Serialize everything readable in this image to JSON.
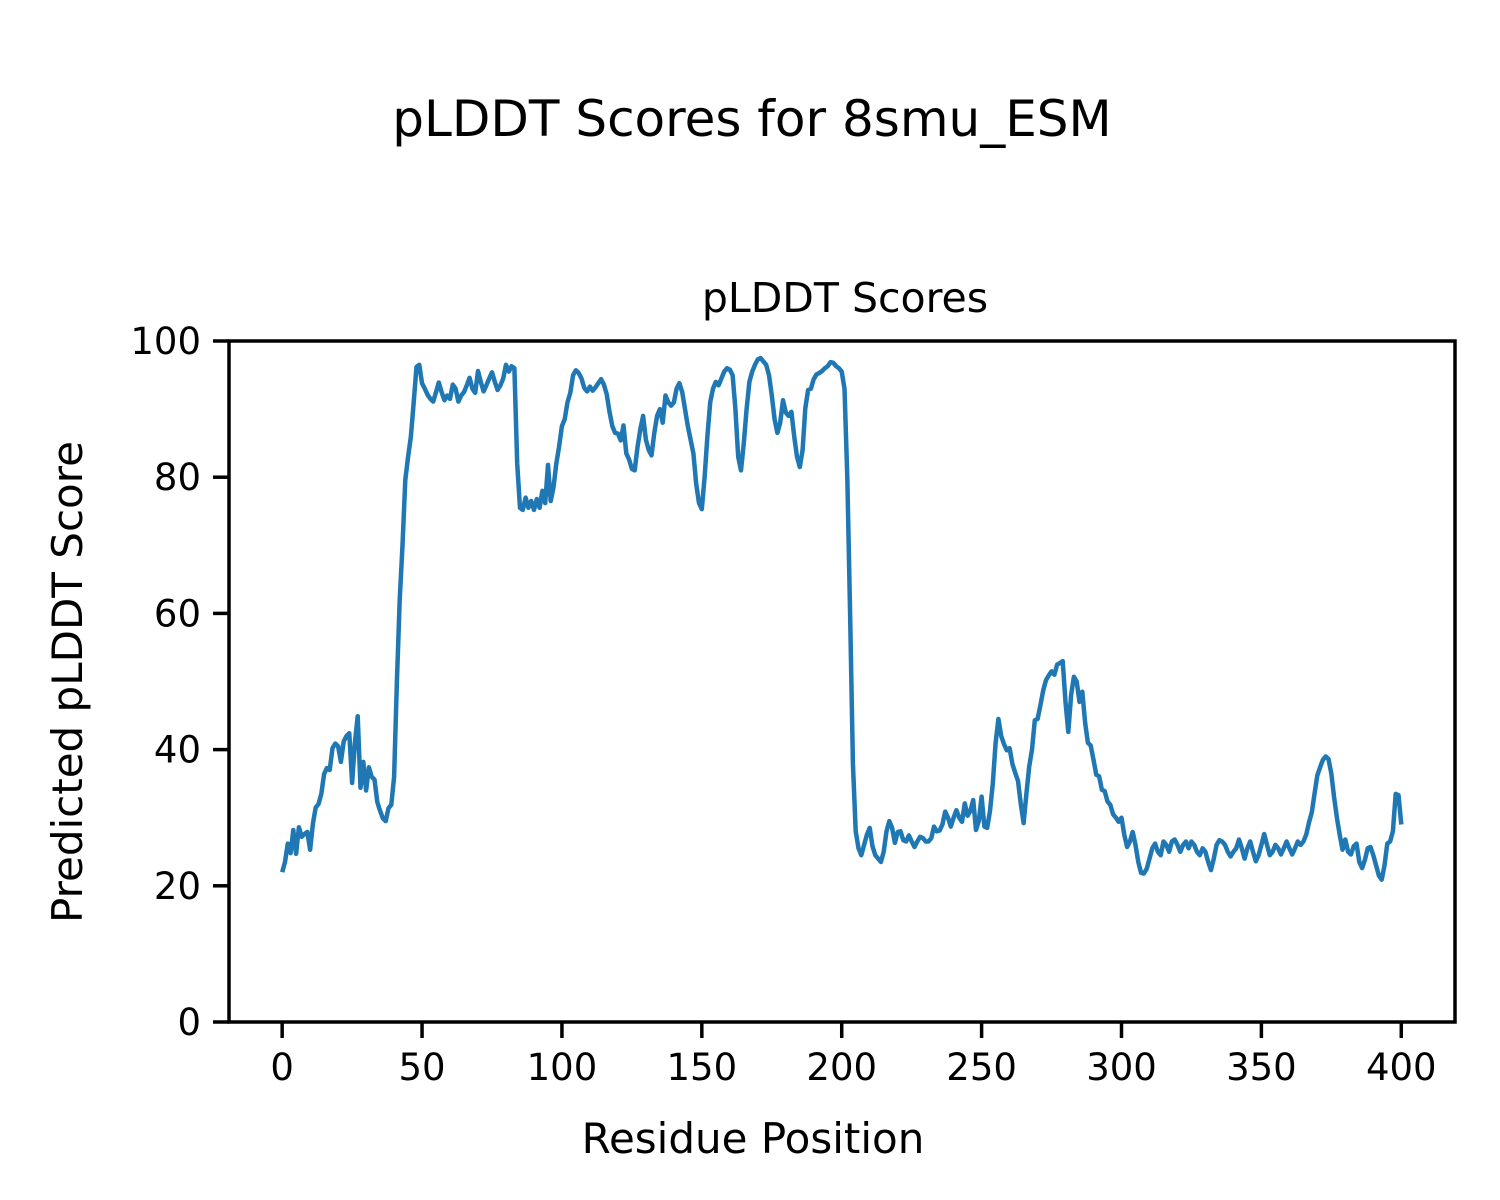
{
  "figure": {
    "suptitle": "pLDDT Scores for 8smu_ESM",
    "background_color": "#ffffff"
  },
  "chart_data": {
    "type": "line",
    "title": "pLDDT Scores",
    "xlabel": "Residue Position",
    "ylabel": "Predicted pLDDT Score",
    "x_ticks": [
      0,
      50,
      100,
      150,
      200,
      250,
      300,
      350,
      400
    ],
    "y_ticks": [
      0,
      20,
      40,
      60,
      80,
      100
    ],
    "xlim": [
      -19,
      419.2
    ],
    "ylim": [
      0,
      100
    ],
    "grid": false,
    "line_color": "#1f77b4",
    "series": [
      {
        "name": "pLDDT",
        "color": "#1f77b4",
        "x_start": 0,
        "x_step": 1,
        "values": [
          22,
          23.5,
          26.2,
          24.8,
          28.2,
          24.7,
          28.6,
          27.2,
          27.6,
          27.9,
          25.3,
          29.1,
          31.5,
          32,
          33.5,
          36.4,
          37.3,
          37,
          40.2,
          40.9,
          40.5,
          38.2,
          41.2,
          42,
          42.4,
          35.1,
          41,
          44.9,
          34.4,
          38.2,
          34,
          37.4,
          36,
          35.6,
          32.3,
          31,
          29.9,
          29.5,
          31.4,
          31.9,
          36,
          50,
          62,
          70,
          79.6,
          83,
          86,
          91,
          96.2,
          96.5,
          93.8,
          93,
          92.1,
          91.5,
          91.1,
          92.5,
          93.9,
          92.5,
          91.3,
          92,
          91.5,
          93.6,
          93,
          91.1,
          92,
          92.5,
          93.5,
          94.6,
          93,
          92.4,
          95.6,
          94,
          92.6,
          93.5,
          94.5,
          95.4,
          94,
          92.8,
          93.5,
          94.5,
          96.5,
          95.5,
          96.3,
          96,
          82,
          75.5,
          75.2,
          77,
          75.5,
          76.5,
          75.2,
          76.8,
          75.5,
          78,
          76.2,
          81.8,
          76.5,
          78.5,
          82,
          84.5,
          87.5,
          88.5,
          91,
          92.4,
          95,
          95.7,
          95.3,
          94.5,
          93.1,
          92.6,
          93.3,
          92.7,
          93.2,
          93.8,
          94.4,
          93.6,
          92.2,
          89.6,
          87.5,
          86.5,
          86.4,
          85.4,
          87.6,
          83.5,
          82.6,
          81.2,
          81,
          84.4,
          87,
          89,
          85.5,
          84,
          83.2,
          86.5,
          89,
          90,
          88,
          92,
          91,
          90.5,
          91,
          93,
          93.8,
          92.5,
          90,
          87.5,
          85.5,
          83.5,
          79,
          76.2,
          75.3,
          80,
          86,
          91,
          93,
          94,
          93.5,
          94.5,
          95.5,
          96,
          95.8,
          95,
          90,
          83,
          81,
          85,
          90,
          94,
          95.5,
          96.5,
          97.3,
          97.5,
          97,
          96.5,
          95,
          92,
          88.5,
          86.5,
          88,
          91.3,
          89.5,
          89,
          89.6,
          86,
          83,
          81.5,
          84,
          90.1,
          92.8,
          93,
          94.4,
          95.1,
          95.3,
          95.6,
          96,
          96.3,
          96.9,
          96.8,
          96.3,
          96,
          95.5,
          93,
          80,
          60,
          38,
          28,
          25.5,
          24.5,
          26,
          27.5,
          28.5,
          25.8,
          24.5,
          24,
          23.5,
          25,
          28,
          29.5,
          28.5,
          26.3,
          27.9,
          28,
          26.7,
          26.5,
          27.4,
          26.5,
          25.7,
          26.5,
          27.2,
          27,
          26.5,
          26.5,
          27,
          28.7,
          28,
          28.1,
          29,
          30.9,
          30,
          28.7,
          30,
          31.1,
          30,
          29.4,
          32.1,
          30.3,
          31,
          32.6,
          28.2,
          29.5,
          33.1,
          28.7,
          28.5,
          31,
          35,
          41,
          44.5,
          42,
          40.8,
          39.9,
          40.2,
          37.9,
          36.6,
          35.4,
          32,
          29.2,
          33.5,
          37.5,
          40,
          44.3,
          44.5,
          46.5,
          48.7,
          50.2,
          50.9,
          51.5,
          51,
          52.5,
          52.7,
          53,
          47,
          42.6,
          48,
          50.7,
          50,
          47,
          48.5,
          44,
          41,
          40.6,
          38.5,
          36.3,
          36.1,
          34.1,
          33.9,
          32.4,
          31.9,
          30.5,
          30,
          29.4,
          30,
          27.5,
          25.7,
          26.5,
          27.9,
          26,
          23.5,
          21.9,
          21.8,
          22.5,
          24,
          25.5,
          26.2,
          25,
          24.5,
          26.5,
          26,
          25,
          26.5,
          26.8,
          26,
          25,
          26,
          26.5,
          25.5,
          26.5,
          26,
          25,
          24.5,
          25.5,
          25,
          23.5,
          22.3,
          24,
          26,
          26.7,
          26.5,
          26,
          25,
          24.3,
          25,
          25.5,
          26.8,
          25.5,
          24,
          25.5,
          26.5,
          25,
          23.6,
          24.5,
          26,
          27.6,
          26,
          24.5,
          25,
          26,
          25.5,
          24.6,
          25.5,
          26.5,
          25.5,
          24.6,
          25.5,
          26.5,
          26,
          26.5,
          27.5,
          29.3,
          30.8,
          33.5,
          36.2,
          37.4,
          38.5,
          39,
          38.6,
          36.5,
          33,
          30,
          27.5,
          25.3,
          26.8,
          25,
          24.6,
          25.8,
          26.2,
          23.5,
          22.6,
          23.8,
          25.5,
          25.7,
          24.5,
          23,
          21.5,
          20.9,
          23,
          26.2,
          26.5,
          28,
          33.5,
          33.3,
          29
        ]
      }
    ]
  }
}
